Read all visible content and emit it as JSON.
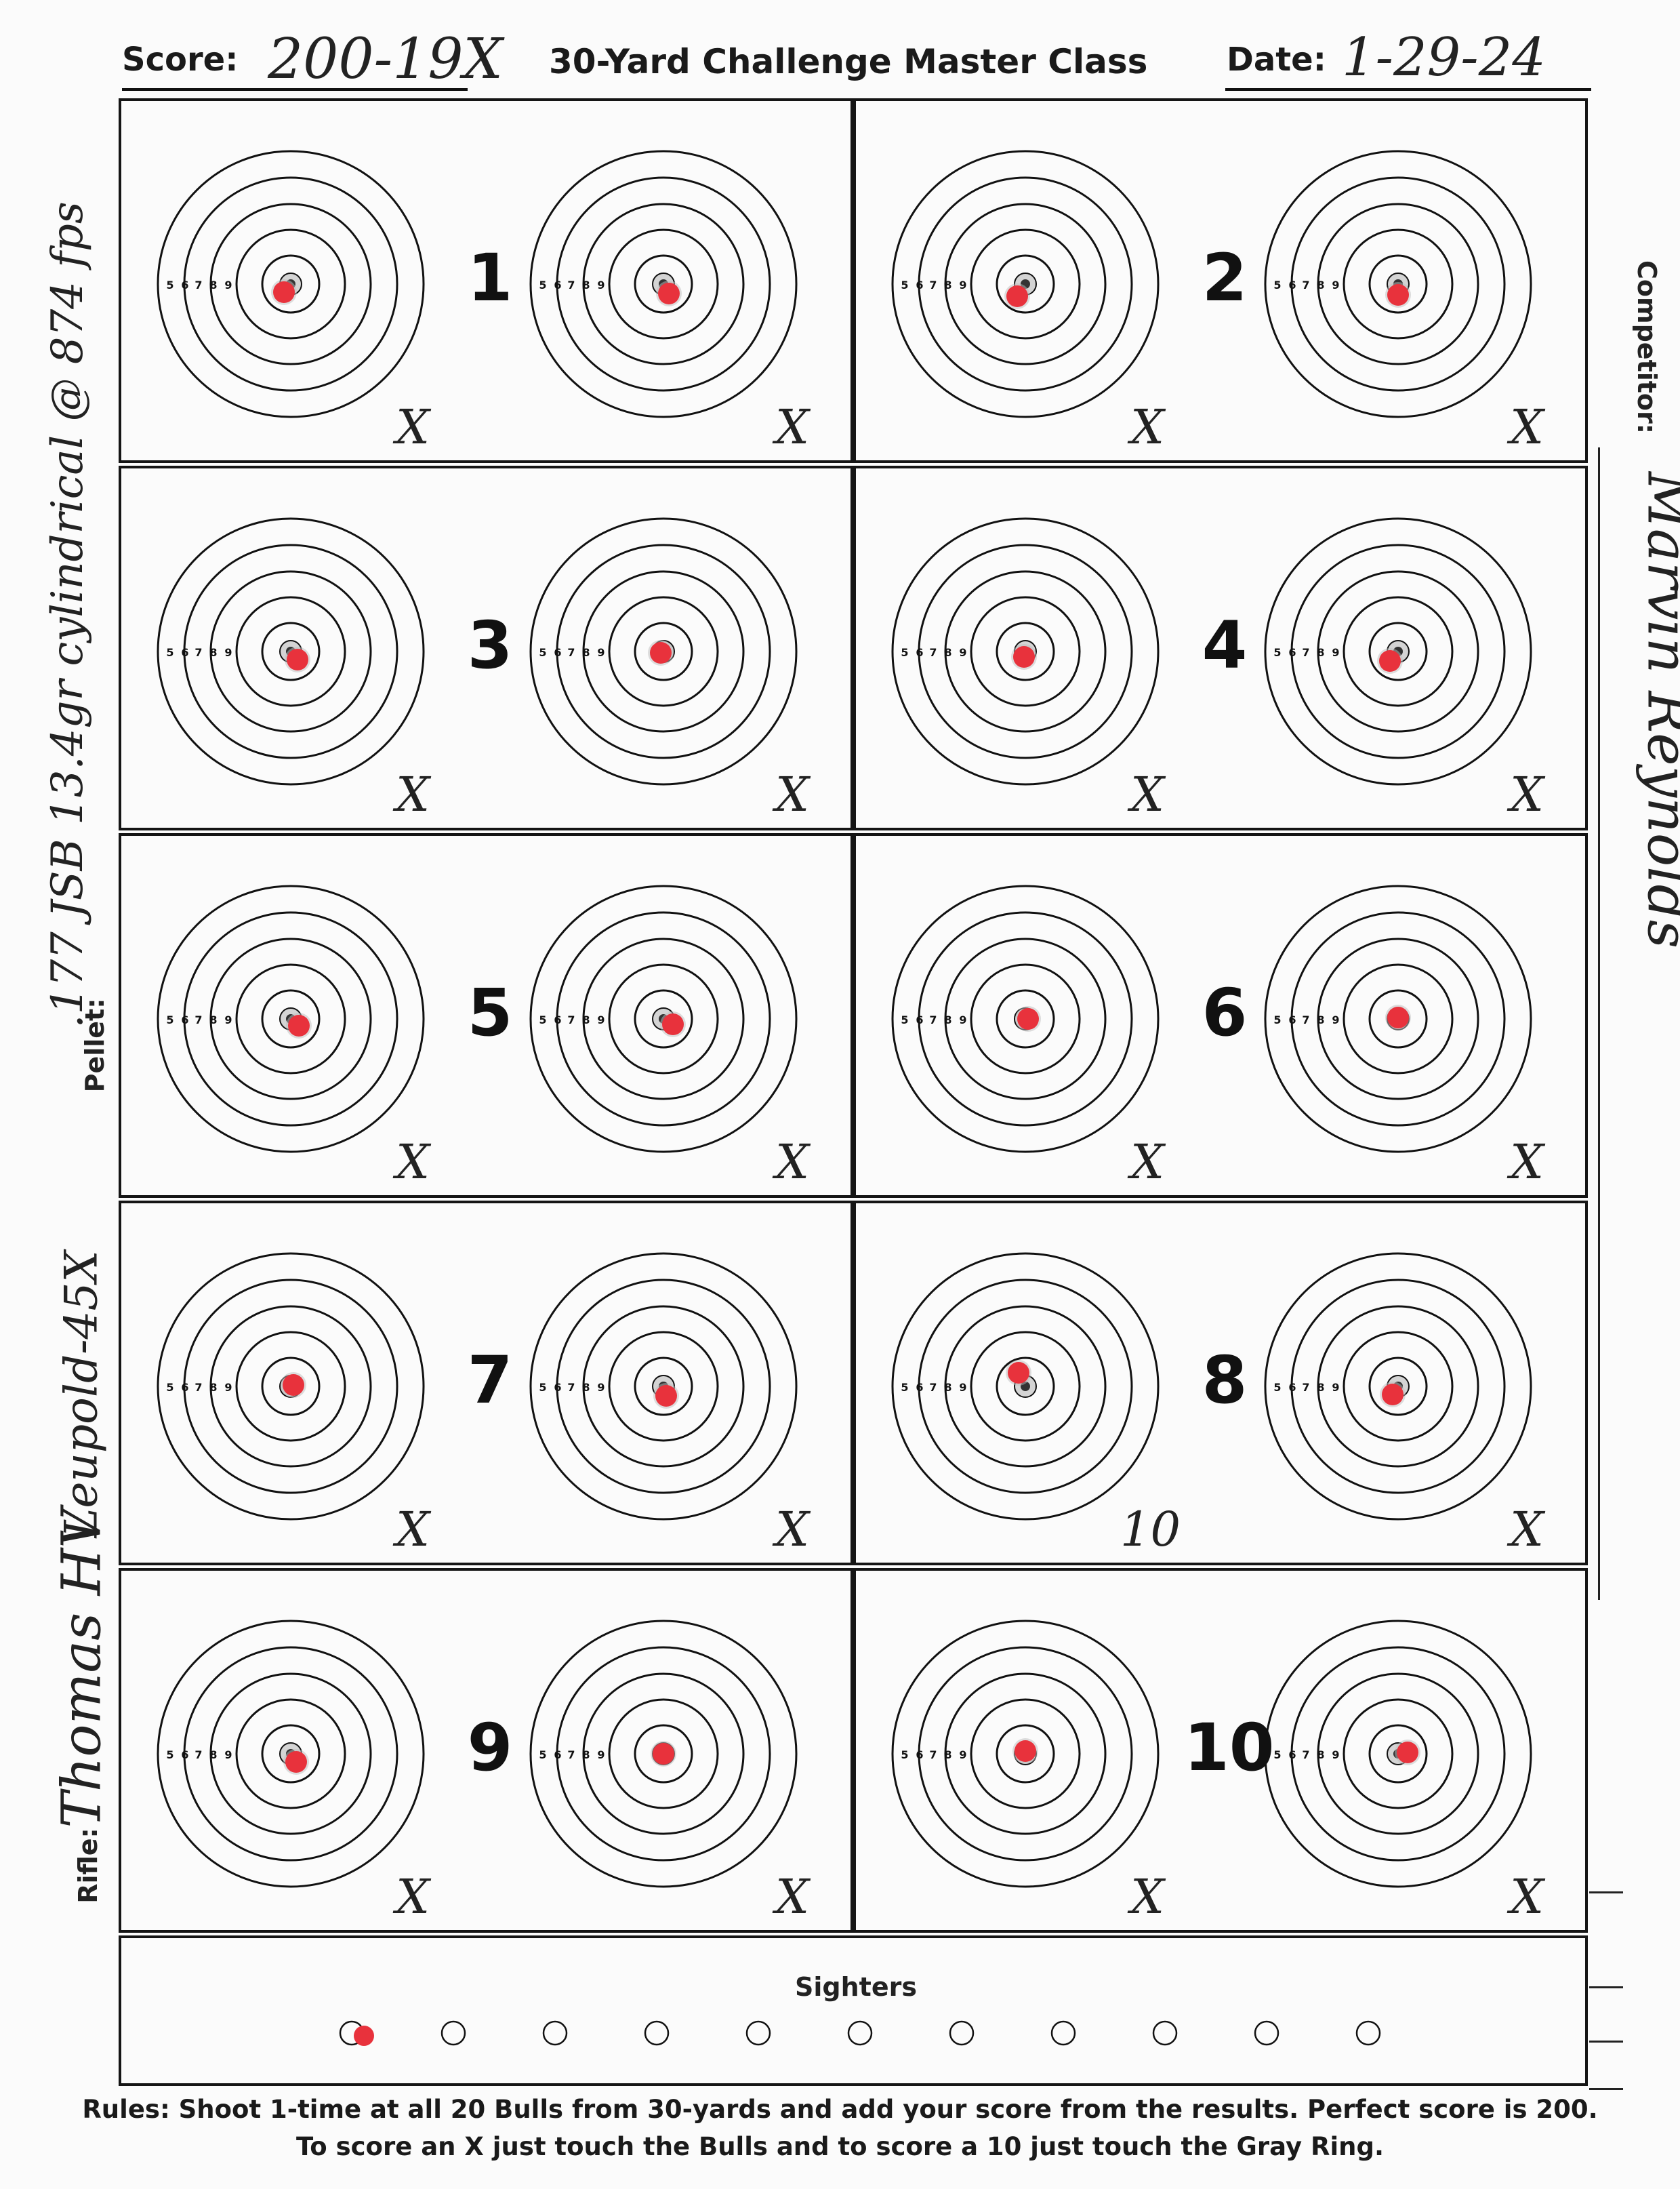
{
  "header": {
    "score_label": "Score:",
    "score_value": "200-19X",
    "title": "30-Yard Challenge Master Class",
    "date_label": "Date:",
    "date_value": "1-29-24"
  },
  "side": {
    "rifle_label": "Rifle:",
    "rifle_value": "Thomas HV",
    "scope_value": "Leupold-45X",
    "pellet_label": "Pellet:",
    "pellet_value": ".177 JSB 13.4gr cylindrical @ 874 fps",
    "competitor_label": "Competitor:",
    "competitor_value": "Marvin Reynolds"
  },
  "ring_labels": [
    "5",
    "6",
    "7",
    "8",
    "9"
  ],
  "pairs": [
    {
      "number": "1",
      "marks": [
        "X",
        "X"
      ],
      "shots": [
        [
          -0.05,
          0.06
        ],
        [
          0.04,
          0.07
        ]
      ]
    },
    {
      "number": "2",
      "marks": [
        "X",
        "X"
      ],
      "shots": [
        [
          -0.06,
          0.09
        ],
        [
          0.0,
          0.08
        ]
      ]
    },
    {
      "number": "3",
      "marks": [
        "X",
        "X"
      ],
      "shots": [
        [
          0.05,
          0.06
        ],
        [
          -0.02,
          0.01
        ]
      ]
    },
    {
      "number": "4",
      "marks": [
        "X",
        "X"
      ],
      "shots": [
        [
          -0.01,
          0.04
        ],
        [
          -0.06,
          0.07
        ]
      ]
    },
    {
      "number": "5",
      "marks": [
        "X",
        "X"
      ],
      "shots": [
        [
          0.06,
          0.05
        ],
        [
          0.07,
          0.04
        ]
      ]
    },
    {
      "number": "6",
      "marks": [
        "X",
        "X"
      ],
      "shots": [
        [
          0.02,
          0.0
        ],
        [
          0.0,
          -0.01
        ]
      ]
    },
    {
      "number": "7",
      "marks": [
        "X",
        "X"
      ],
      "shots": [
        [
          0.02,
          -0.01
        ],
        [
          0.02,
          0.07
        ]
      ]
    },
    {
      "number": "8",
      "marks": [
        "10",
        "X"
      ],
      "shots": [
        [
          -0.05,
          -0.1
        ],
        [
          -0.04,
          0.06
        ]
      ]
    },
    {
      "number": "9",
      "marks": [
        "X",
        "X"
      ],
      "shots": [
        [
          0.04,
          0.06
        ],
        [
          0.0,
          0.0
        ]
      ]
    },
    {
      "number": "10",
      "marks": [
        "X",
        "X"
      ],
      "shots": [
        [
          0.0,
          -0.02
        ],
        [
          0.07,
          -0.01
        ]
      ]
    }
  ],
  "sighters": {
    "title": "Sighters",
    "count": 11,
    "shot_index": 0
  },
  "rules": {
    "line1": "Rules: Shoot 1-time at all 20 Bulls from 30-yards and add your score from the results. Perfect score is 200.",
    "line2": "To score an X just touch the Bulls and to score a 10 just touch the Gray Ring."
  },
  "colors": {
    "ink": "#111111",
    "shot": "#e8323c",
    "paper": "#fbfbfb",
    "gray_ring": "#9a9a9a"
  }
}
